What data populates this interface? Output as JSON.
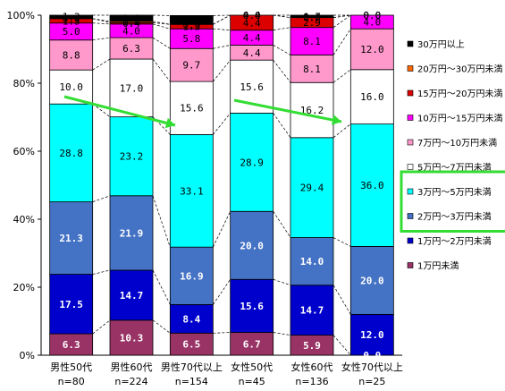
{
  "chart_data": {
    "type": "bar",
    "stacked": true,
    "percent": true,
    "ylim": [
      0,
      100
    ],
    "yticks": [
      "0%",
      "20%",
      "40%",
      "60%",
      "80%",
      "100%"
    ],
    "categories": [
      "男性50代",
      "男性60代",
      "男性70代以上",
      "女性50代",
      "女性60代",
      "女性70代以上"
    ],
    "sample_sizes": [
      "n=80",
      "n=224",
      "n=154",
      "n=45",
      "n=136",
      "n=25"
    ],
    "series": [
      {
        "name": "1万円未満",
        "color": "#993366",
        "values": [
          6.3,
          10.3,
          6.5,
          6.7,
          5.9,
          0.0
        ]
      },
      {
        "name": "1万円～2万円未満",
        "color": "#0000cc",
        "values": [
          17.5,
          14.7,
          8.4,
          15.6,
          14.7,
          12.0
        ]
      },
      {
        "name": "2万円～3万円未満",
        "color": "#4472c4",
        "values": [
          21.3,
          21.9,
          16.9,
          20.0,
          14.0,
          20.0
        ]
      },
      {
        "name": "3万円～5万円未満",
        "color": "#00ffff",
        "values": [
          28.8,
          23.2,
          33.1,
          28.9,
          29.4,
          36.0
        ]
      },
      {
        "name": "5万円～7万円未満",
        "color": "#ffffff",
        "values": [
          10.0,
          17.0,
          15.6,
          15.6,
          16.2,
          16.0
        ]
      },
      {
        "name": "7万円～10万円未満",
        "color": "#ff99cc",
        "values": [
          8.8,
          6.3,
          9.7,
          4.4,
          8.1,
          12.0
        ]
      },
      {
        "name": "10万円～15万円未満",
        "color": "#ff00ff",
        "values": [
          5.0,
          4.0,
          5.8,
          4.4,
          8.1,
          4.0
        ]
      },
      {
        "name": "15万円～20万円未満",
        "color": "#dd0000",
        "values": [
          1.3,
          0.4,
          1.3,
          4.4,
          2.9,
          0.0
        ]
      },
      {
        "name": "20万円～30万円未満",
        "color": "#ff6600",
        "values": [
          0.0,
          0.4,
          0.0,
          4.4,
          0.0,
          0.0
        ]
      },
      {
        "name": "30万円以上",
        "color": "#000000",
        "values": [
          1.3,
          1.8,
          2.6,
          0.0,
          0.7,
          0.0
        ]
      }
    ],
    "label_colors": [
      "#ffffff",
      "#ffffff",
      "#ffffff",
      "#000000",
      "#000000",
      "#000000",
      "#000000",
      "#000000",
      "#000000",
      "#000000"
    ],
    "legend_order": [
      "30万円以上",
      "20万円～30万円未満",
      "15万円～20万円未満",
      "10万円～15万円未満",
      "7万円～10万円未満",
      "5万円～7万円未満",
      "3万円～5万円未満",
      "2万円～3万円未満",
      "1万円～2万円未満",
      "1万円未満"
    ],
    "annotations": {
      "arrows_color": "#33dd33",
      "legend_highlight_color": "#33dd33",
      "legend_highlight_series": [
        "3万円～5万円未満",
        "2万円～3万円未満"
      ]
    }
  }
}
